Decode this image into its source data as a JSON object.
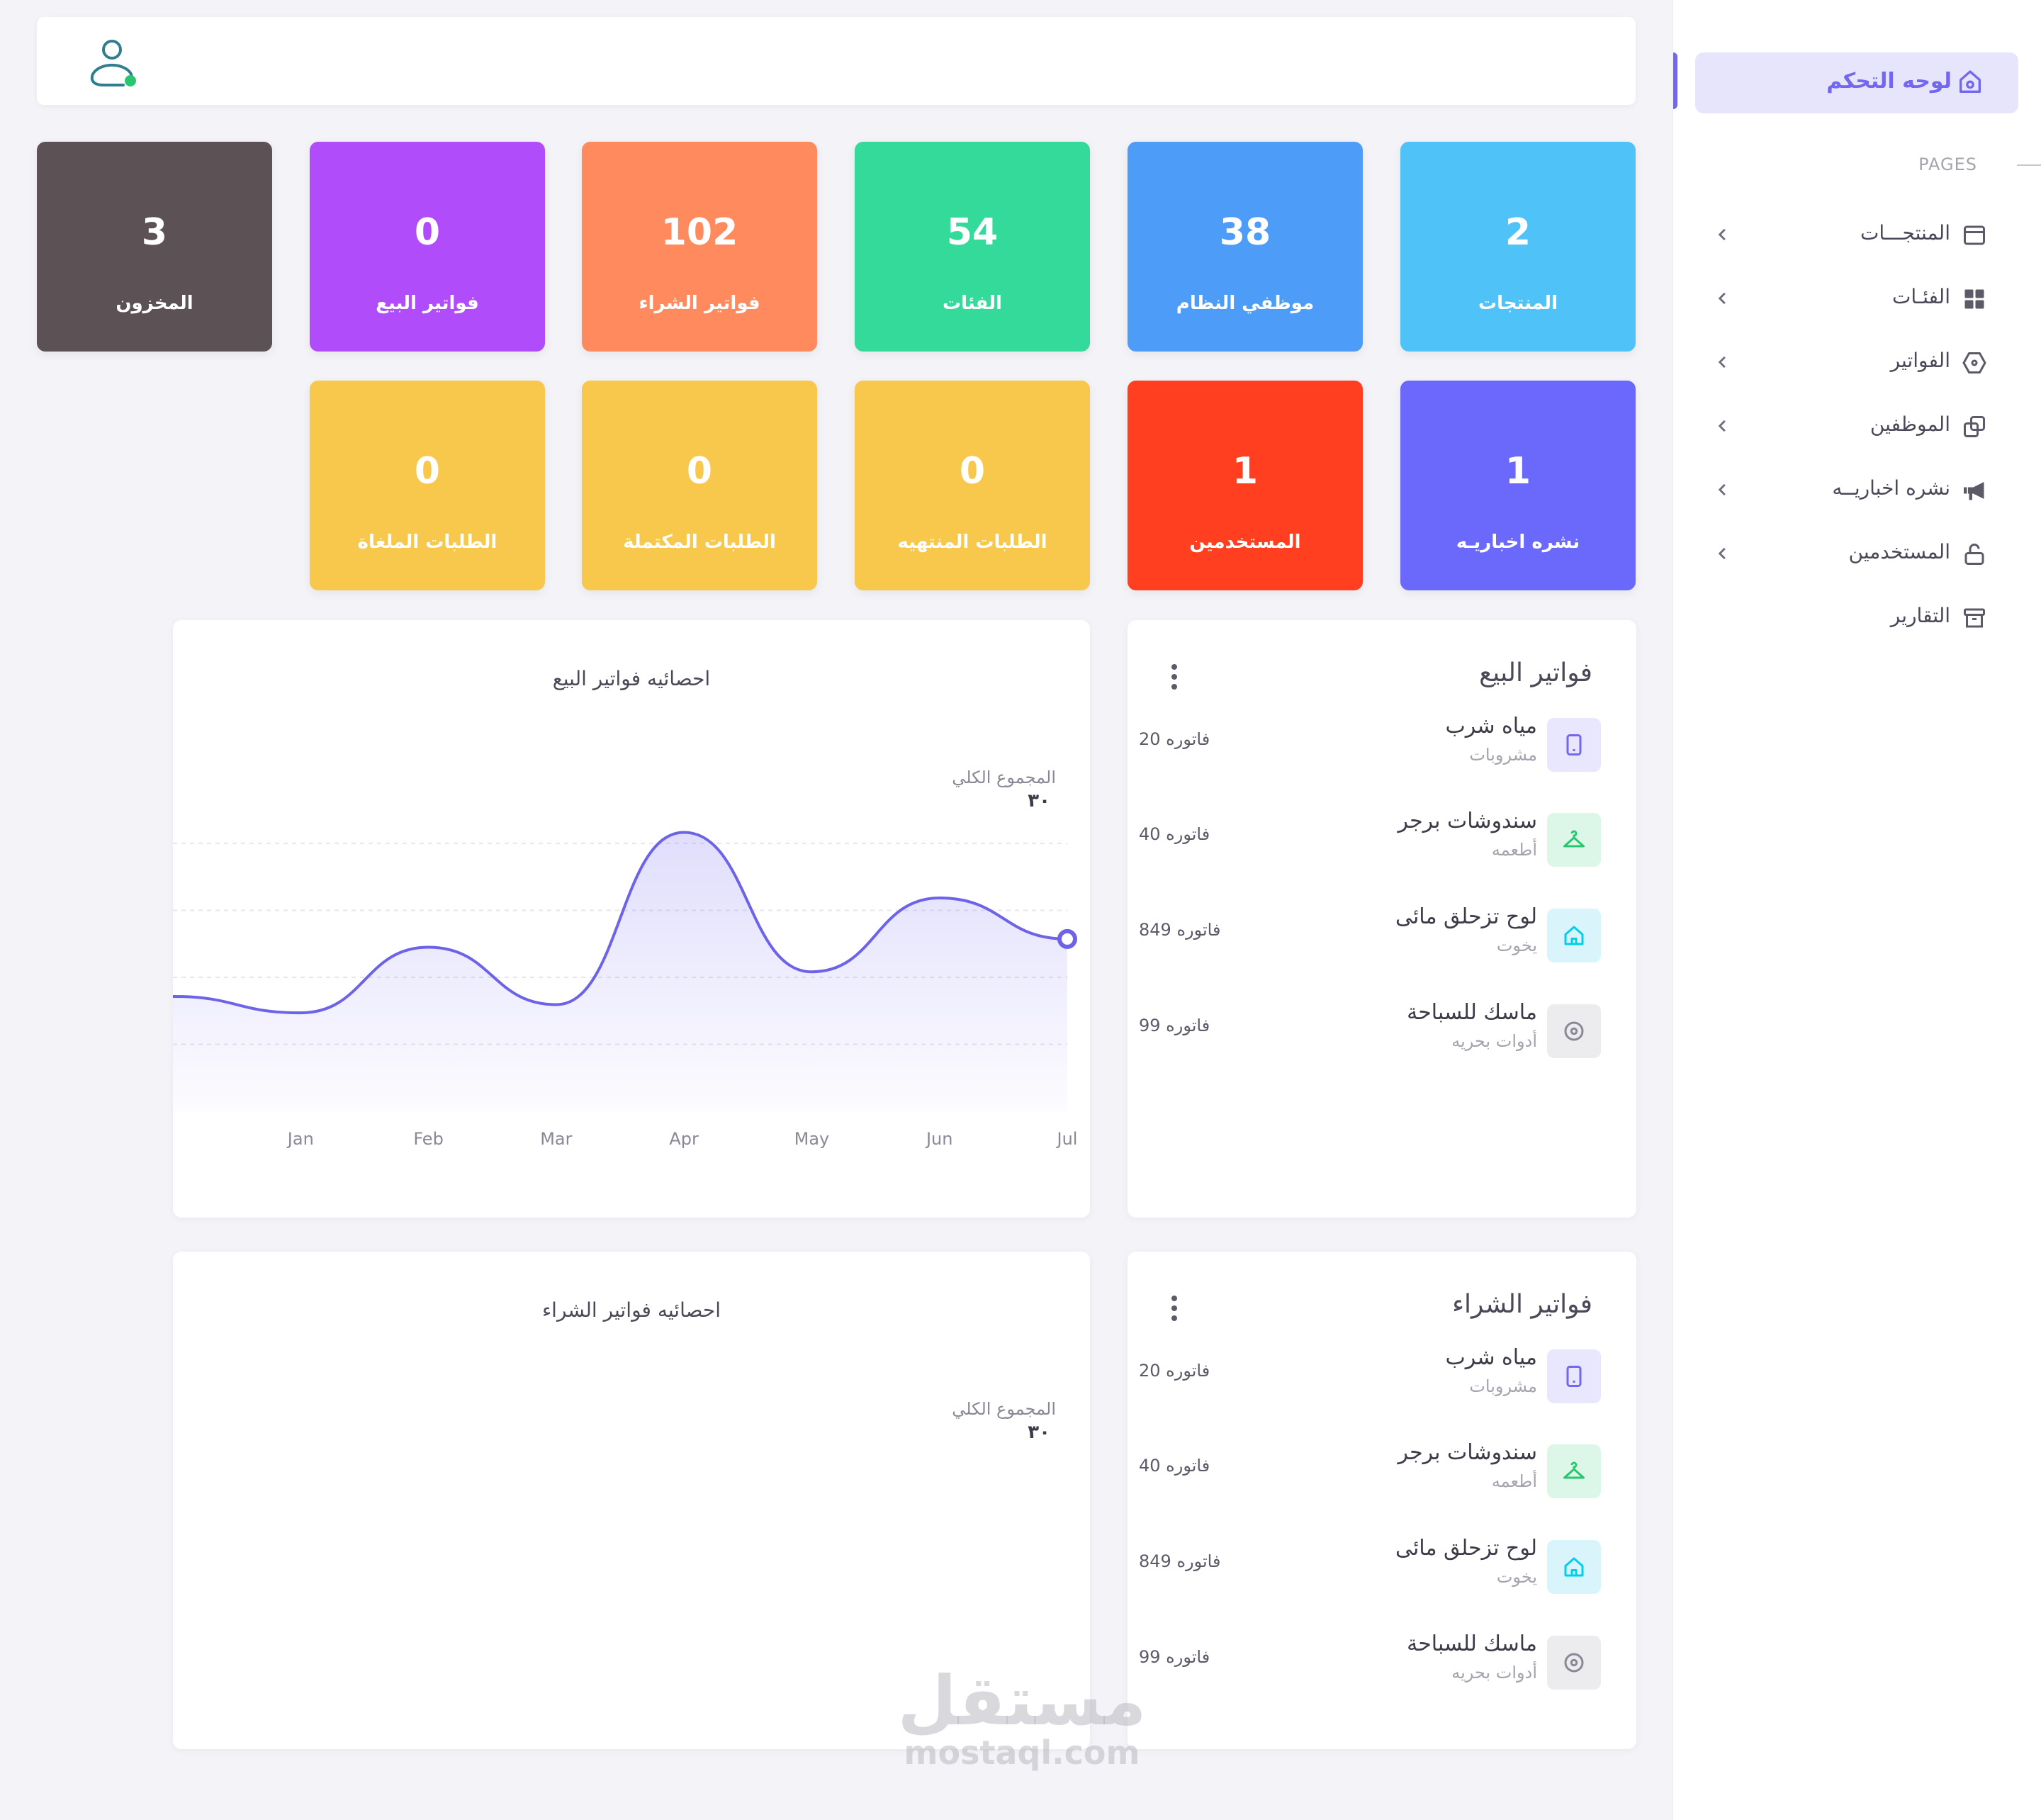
{
  "sidebar": {
    "active": {
      "label": "لوحه التحكم",
      "icon": "home-icon"
    },
    "section": "PAGES",
    "items": [
      {
        "label": "المنتجـــات",
        "icon": "layout-icon"
      },
      {
        "label": "الفئـات",
        "icon": "grid-icon"
      },
      {
        "label": "الفواتير",
        "icon": "tag-icon"
      },
      {
        "label": "الموظفين",
        "icon": "copy-icon"
      },
      {
        "label": "نشره اخباريــه",
        "icon": "megaphone-icon"
      },
      {
        "label": "المستخدمين",
        "icon": "lock-icon"
      },
      {
        "label": "التقارير",
        "icon": "archive-icon"
      }
    ]
  },
  "stats": [
    {
      "value": "2",
      "label": "المنتجات",
      "color": "#4fc2f8"
    },
    {
      "value": "38",
      "label": "موظفي النظام",
      "color": "#4d9cf8"
    },
    {
      "value": "54",
      "label": "الفئات",
      "color": "#33da9a"
    },
    {
      "value": "102",
      "label": "فواتير الشراء",
      "color": "#ff8a5e"
    },
    {
      "value": "0",
      "label": "فواتير البيع",
      "color": "#b04cf9"
    },
    {
      "value": "3",
      "label": "المخزون",
      "color": "#5c5256"
    },
    {
      "value": "1",
      "label": "نشره اخباريـه",
      "color": "#6b68fc"
    },
    {
      "value": "1",
      "label": "المستخدمين",
      "color": "#ff3f1f"
    },
    {
      "value": "0",
      "label": "الطلبات المنتهيه",
      "color": "#f7c84c"
    },
    {
      "value": "0",
      "label": "الطلبات المكتملة",
      "color": "#f7c84c"
    },
    {
      "value": "0",
      "label": "الطلبات الملغاة",
      "color": "#f7c84c"
    }
  ],
  "sales_panel": {
    "title": "فواتير البيع",
    "items": [
      {
        "name": "مياه شرب",
        "sub": "مشروبات",
        "count": "20 فاتوره",
        "icon": "phone-icon"
      },
      {
        "name": "سندوشات برجر",
        "sub": "أطعمه",
        "count": "40 فاتوره",
        "icon": "hanger-icon"
      },
      {
        "name": "لوح تزحلق مائى",
        "sub": "يخوت",
        "count": "849 فاتوره",
        "icon": "house-icon"
      },
      {
        "name": "ماسك للسباحة",
        "sub": "أدوات بحريه",
        "count": "99 فاتوره",
        "icon": "gear-icon"
      }
    ]
  },
  "purchase_panel": {
    "title": "فواتير الشراء",
    "items": [
      {
        "name": "مياه شرب",
        "sub": "مشروبات",
        "count": "20 فاتوره",
        "icon": "phone-icon"
      },
      {
        "name": "سندوشات برجر",
        "sub": "أطعمه",
        "count": "40 فاتوره",
        "icon": "hanger-icon"
      },
      {
        "name": "لوح تزحلق مائى",
        "sub": "يخوت",
        "count": "849 فاتوره",
        "icon": "house-icon"
      },
      {
        "name": "ماسك للسباحة",
        "sub": "أدوات بحريه",
        "count": "99 فاتوره",
        "icon": "gear-icon"
      }
    ]
  },
  "sales_chart": {
    "title": "احصائيه فواتير البيع",
    "total_label": "المجموع الكلي",
    "total_value": "٣٠"
  },
  "purchase_chart": {
    "title": "احصائيه فواتير الشراء",
    "total_label": "المجموع الكلي",
    "total_value": "٣٠"
  },
  "chart_data": {
    "type": "area",
    "x": [
      "",
      "Jan",
      "Feb",
      "Mar",
      "Apr",
      "May",
      "Jun",
      "Jul"
    ],
    "values": [
      14,
      12,
      20,
      13,
      34,
      17,
      26,
      21
    ],
    "ylim": [
      0,
      40
    ],
    "grid": true,
    "line_color": "#6c63e8"
  },
  "watermark": {
    "ar": "مستقل",
    "en": "mostaql.com"
  }
}
